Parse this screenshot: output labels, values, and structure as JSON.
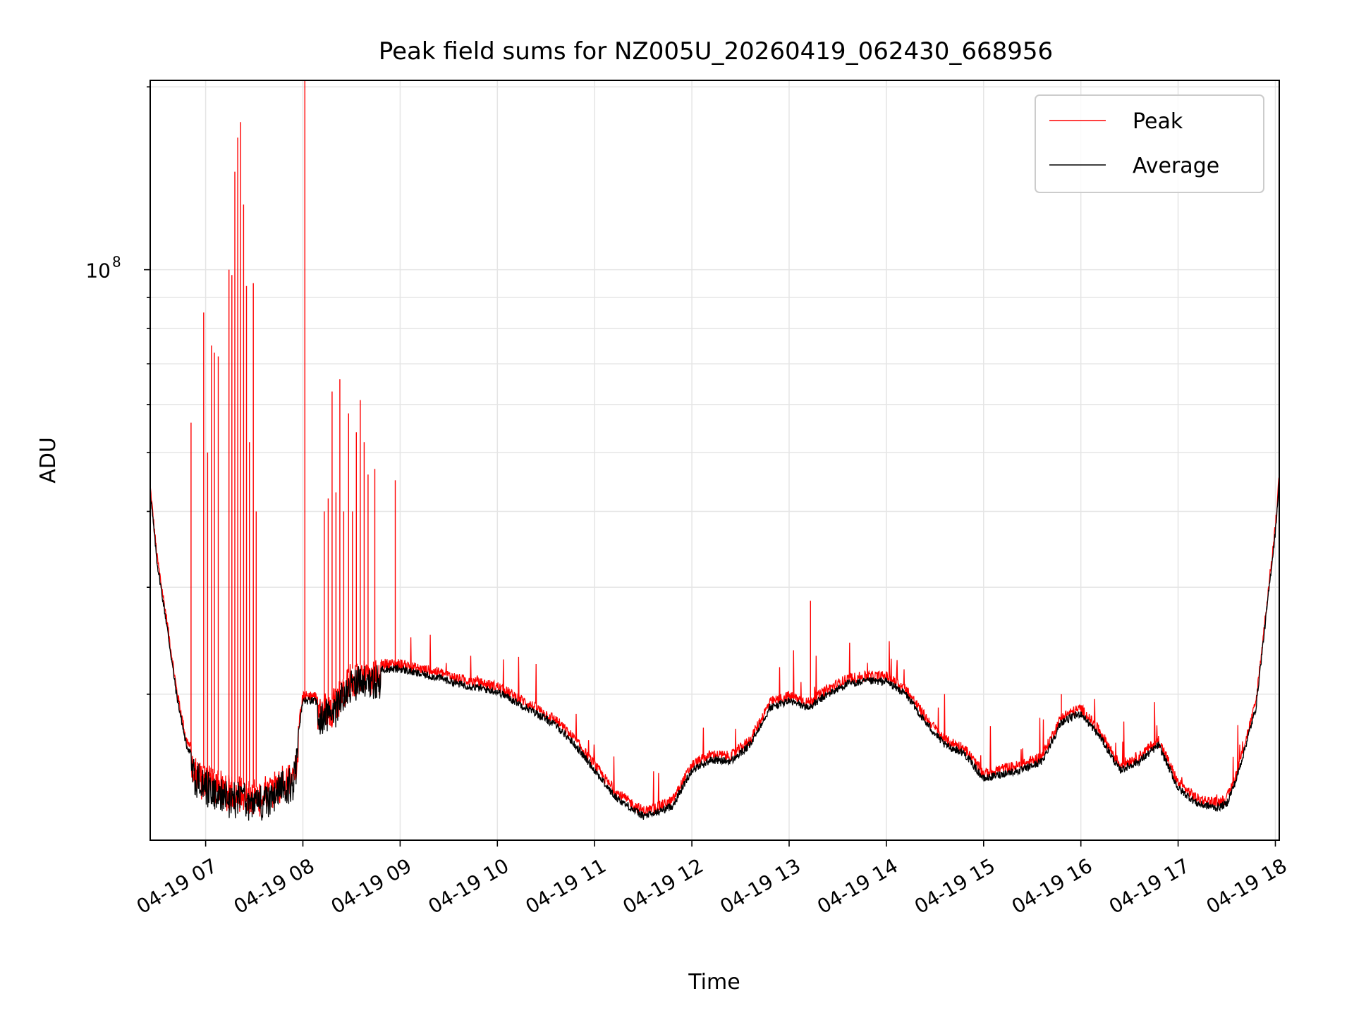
{
  "chart_data": {
    "type": "line",
    "title": "Peak field sums for NZ005U_20260419_062430_668956",
    "xlabel": "Time",
    "ylabel": "ADU",
    "y_scale": "log",
    "x_range_hours": [
      6.43,
      18.04
    ],
    "ylim_approx": [
      11500000,
      205000000
    ],
    "x_ticks": [
      "04-19 07",
      "04-19 08",
      "04-19 09",
      "04-19 10",
      "04-19 11",
      "04-19 12",
      "04-19 13",
      "04-19 14",
      "04-19 15",
      "04-19 16",
      "04-19 17",
      "04-19 18"
    ],
    "y_tick_major": {
      "value": 100000000,
      "base": "10",
      "exponent": "8"
    },
    "grid": true,
    "legend": {
      "placement": "top-right",
      "entries": [
        {
          "name": "Peak",
          "color": "#ff0000"
        },
        {
          "name": "Average",
          "color": "#000000"
        }
      ]
    },
    "series": [
      {
        "name": "Average",
        "color": "#000000",
        "x_hours": [
          6.43,
          6.5,
          6.6,
          6.7,
          6.8,
          6.9,
          7.0,
          7.1,
          7.2,
          7.3,
          7.4,
          7.5,
          7.6,
          7.7,
          7.8,
          7.9,
          8.0,
          8.1,
          8.2,
          8.3,
          8.4,
          8.5,
          8.6,
          8.7,
          8.8,
          9.0,
          9.2,
          9.4,
          9.6,
          9.8,
          10.0,
          10.2,
          10.4,
          10.6,
          10.8,
          11.0,
          11.2,
          11.4,
          11.5,
          11.6,
          11.8,
          12.0,
          12.2,
          12.4,
          12.6,
          12.8,
          13.0,
          13.2,
          13.4,
          13.6,
          13.8,
          14.0,
          14.2,
          14.4,
          14.6,
          14.8,
          15.0,
          15.2,
          15.4,
          15.6,
          15.8,
          16.0,
          16.2,
          16.4,
          16.6,
          16.8,
          17.0,
          17.2,
          17.4,
          17.5,
          17.6,
          17.8,
          18.0,
          18.04
        ],
        "values_mil": [
          43,
          33,
          26,
          20,
          16.5,
          15.5,
          15,
          14.8,
          14.5,
          14.3,
          14.2,
          14.0,
          14.2,
          14.5,
          15.0,
          15.0,
          19.5,
          19.5,
          19.3,
          19.6,
          21.0,
          22.0,
          22.4,
          22.2,
          22.0,
          22.0,
          21.6,
          21.3,
          20.8,
          20.5,
          20.2,
          19.4,
          18.6,
          17.8,
          16.5,
          15.0,
          13.6,
          12.9,
          12.6,
          12.7,
          13.1,
          15.0,
          15.6,
          15.5,
          16.5,
          19.0,
          19.5,
          19.0,
          20.0,
          20.8,
          21.0,
          21.0,
          20.0,
          18.0,
          16.5,
          16.0,
          14.5,
          14.8,
          15.0,
          15.5,
          18.0,
          18.6,
          17.0,
          15.0,
          15.5,
          16.5,
          14.0,
          13.2,
          13.0,
          13.2,
          14.5,
          19.0,
          37,
          45
        ]
      },
      {
        "name": "Peak",
        "color": "#ff0000",
        "spikes": [
          {
            "x_hours": 6.85,
            "value_mil": 56
          },
          {
            "x_hours": 6.98,
            "value_mil": 85
          },
          {
            "x_hours": 7.02,
            "value_mil": 50
          },
          {
            "x_hours": 7.06,
            "value_mil": 75
          },
          {
            "x_hours": 7.09,
            "value_mil": 73
          },
          {
            "x_hours": 7.13,
            "value_mil": 72
          },
          {
            "x_hours": 7.24,
            "value_mil": 100
          },
          {
            "x_hours": 7.27,
            "value_mil": 98
          },
          {
            "x_hours": 7.3,
            "value_mil": 145
          },
          {
            "x_hours": 7.33,
            "value_mil": 165
          },
          {
            "x_hours": 7.36,
            "value_mil": 175
          },
          {
            "x_hours": 7.39,
            "value_mil": 128
          },
          {
            "x_hours": 7.42,
            "value_mil": 94
          },
          {
            "x_hours": 7.45,
            "value_mil": 52
          },
          {
            "x_hours": 7.49,
            "value_mil": 95
          },
          {
            "x_hours": 7.52,
            "value_mil": 40
          },
          {
            "x_hours": 8.02,
            "value_mil": 205
          },
          {
            "x_hours": 8.22,
            "value_mil": 40
          },
          {
            "x_hours": 8.26,
            "value_mil": 42
          },
          {
            "x_hours": 8.3,
            "value_mil": 63
          },
          {
            "x_hours": 8.34,
            "value_mil": 43
          },
          {
            "x_hours": 8.38,
            "value_mil": 66
          },
          {
            "x_hours": 8.42,
            "value_mil": 40
          },
          {
            "x_hours": 8.47,
            "value_mil": 58
          },
          {
            "x_hours": 8.51,
            "value_mil": 40
          },
          {
            "x_hours": 8.55,
            "value_mil": 54
          },
          {
            "x_hours": 8.59,
            "value_mil": 61
          },
          {
            "x_hours": 8.63,
            "value_mil": 52
          },
          {
            "x_hours": 8.67,
            "value_mil": 46
          },
          {
            "x_hours": 8.74,
            "value_mil": 47
          },
          {
            "x_hours": 8.95,
            "value_mil": 45
          },
          {
            "x_hours": 13.22,
            "value_mil": 28.5
          },
          {
            "x_hours": 15.8,
            "value_mil": 20
          }
        ]
      }
    ]
  }
}
